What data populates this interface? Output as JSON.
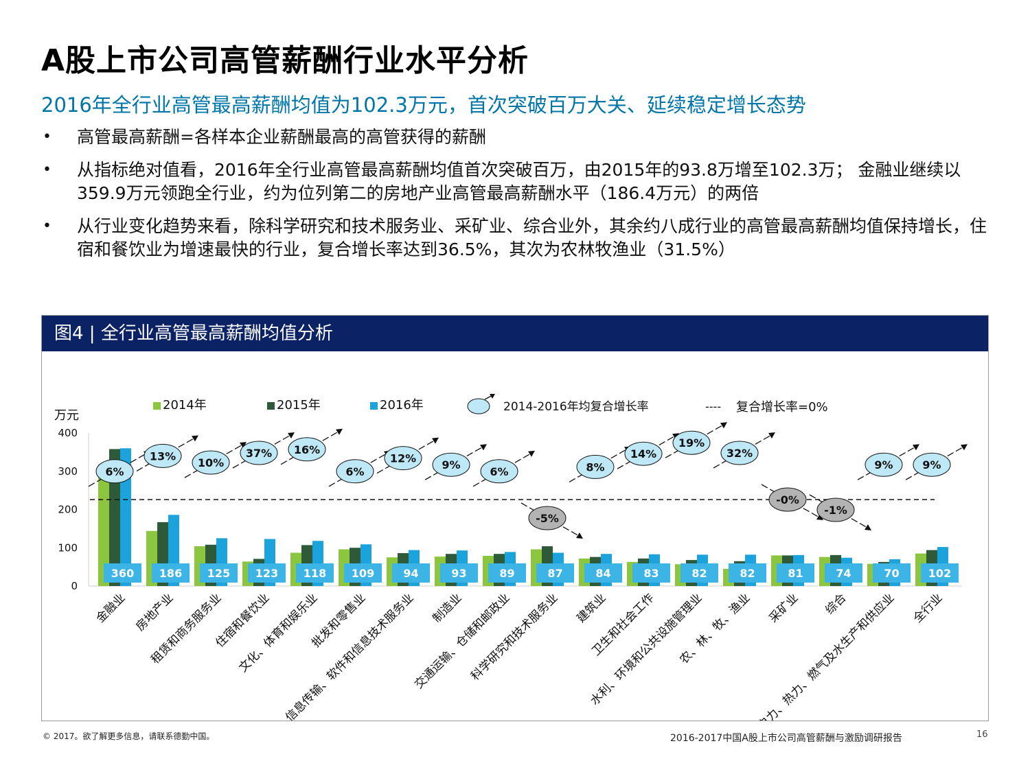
{
  "header": {
    "title": "A股上市公司高管薪酬行业水平分析",
    "subtitle": "2016年全行业高管最高薪酬均值为102.3万元，首次突破百万大关、延续稳定增长态势"
  },
  "bullets": [
    "高管最高薪酬=各样本企业薪酬最高的高管获得的薪酬",
    "从指标绝对值看，2016年全行业高管最高薪酬均值首次突破百万，由2015年的93.8万增至102.3万； 金融业继续以359.9万元领跑全行业，约为位列第二的房地产业高管最高薪酬水平（186.4万元）的两倍",
    "从行业变化趋势来看，除科学研究和技术服务业、采矿业、综合业外，其余约八成行业的高管最高薪酬均值保持增长，住宿和餐饮业为增速最快的行业，复合增长率达到36.5%，其次为农林牧渔业（31.5%）"
  ],
  "bullet_marker": "•",
  "panel": {
    "title": "图4 | 全行业高管最高薪酬均值分析"
  },
  "colors": {
    "s2014": "#8cc63f",
    "s2015": "#2e5a3a",
    "s2016": "#1aa3dc",
    "value_box": "#3cb4e5",
    "bubble_pos": "#bfe8f7",
    "bubble_neg": "#b3b3b3",
    "header_bg": "#0b2265"
  },
  "chart_data": {
    "type": "bar",
    "unit_label": "万元",
    "ylim": [
      0,
      400
    ],
    "yticks": [
      0,
      100,
      200,
      300,
      400
    ],
    "grid": false,
    "legend": {
      "position": "top",
      "items": [
        "2014年",
        "2015年",
        "2016年"
      ],
      "cagr_label": "2014-2016年均复合增长率",
      "zero_label": "复合增长率=0%",
      "zero_dash": "----"
    },
    "categories": [
      "金融业",
      "房地产业",
      "租赁和商务服务业",
      "住宿和餐饮业",
      "文化、体育和娱乐业",
      "批发和零售业",
      "信息传输、软件和信息技术服务业",
      "制造业",
      "交通运输、仓储和邮政业",
      "科学研究和技术服务业",
      "建筑业",
      "卫生和社会工作",
      "水利、环境和公共设施管理业",
      "农、林、牧、渔业",
      "采矿业",
      "综合",
      "电力、热力、燃气及水生产和供应业",
      "全行业"
    ],
    "series": [
      {
        "name": "2014年",
        "values": [
          318,
          144,
          104,
          64,
          87,
          96,
          75,
          77,
          79,
          96,
          72,
          63,
          57,
          45,
          80,
          76,
          58,
          85
        ]
      },
      {
        "name": "2015年",
        "values": [
          358,
          167,
          108,
          71,
          107,
          100,
          86,
          84,
          84,
          104,
          76,
          72,
          68,
          65,
          80,
          81,
          63,
          94
        ]
      },
      {
        "name": "2016年",
        "values": [
          360,
          186,
          125,
          123,
          118,
          109,
          94,
          93,
          89,
          87,
          84,
          83,
          82,
          82,
          81,
          74,
          70,
          102
        ]
      }
    ],
    "value_labels": [
      "360",
      "186",
      "125",
      "123",
      "118",
      "109",
      "94",
      "93",
      "89",
      "87",
      "84",
      "83",
      "82",
      "82",
      "81",
      "74",
      "70",
      "102"
    ],
    "cagr": [
      6,
      13,
      10,
      37,
      16,
      6,
      12,
      9,
      6,
      -5,
      8,
      14,
      19,
      32,
      0,
      -1,
      9,
      9
    ],
    "cagr_labels": [
      "6%",
      "13%",
      "10%",
      "37%",
      "16%",
      "6%",
      "12%",
      "9%",
      "6%",
      "-5%",
      "8%",
      "14%",
      "19%",
      "32%",
      "-0%",
      "-1%",
      "9%",
      "9%"
    ]
  },
  "footer": {
    "copyright": "© 2017。欲了解更多信息，请联系德勤中国。",
    "report": "2016-2017中国A股上市公司高管薪酬与激励调研报告",
    "page": "16"
  }
}
